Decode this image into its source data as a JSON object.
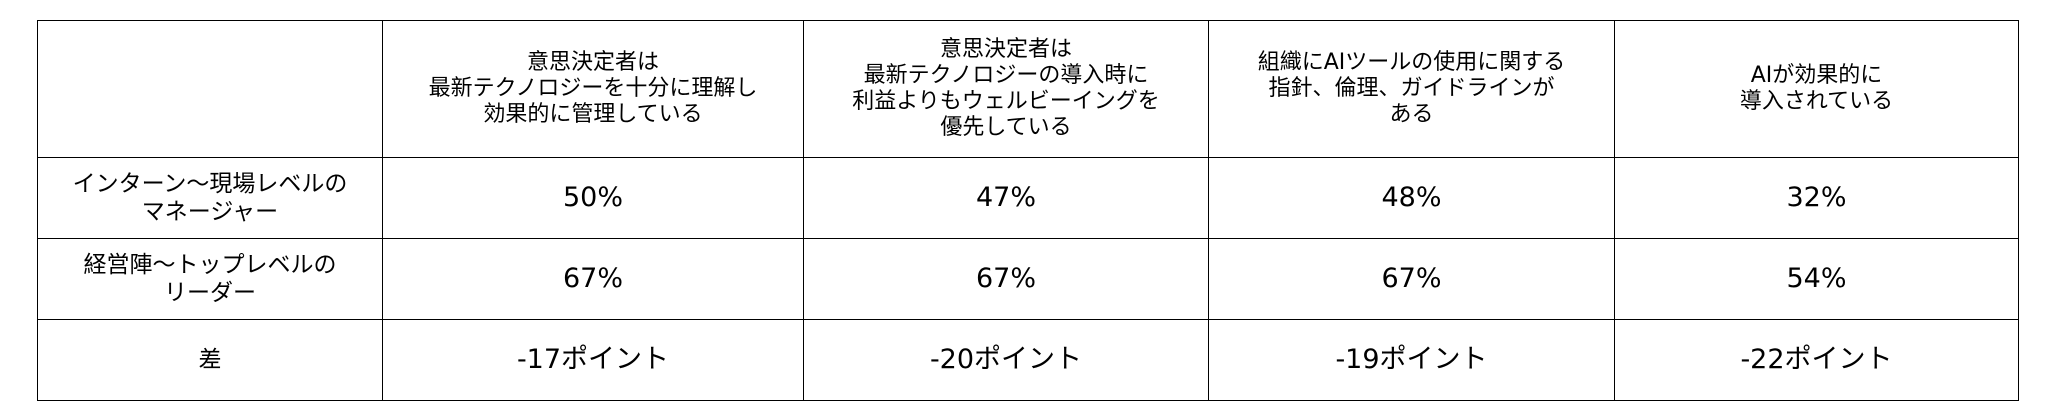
{
  "table": {
    "header": [
      "",
      "意思決定者は\n最新テクノロジーを十分に理解し\n効果的に管理している",
      "意思決定者は\n最新テクノロジーの導入時に\n利益よりもウェルビーイングを\n優先している",
      "組織にAIツールの使用に関する\n指針、倫理、ガイドラインが\nある",
      "AIが効果的に\n導入されている"
    ],
    "rows": [
      [
        "インターン～現場レベルの\nマネージャー",
        "50%",
        "47%",
        "48%",
        "32%"
      ],
      [
        "経営陣～トップレベルの\nリーダー",
        "67%",
        "67%",
        "67%",
        "54%"
      ],
      [
        "差",
        "-17ポイント",
        "-20ポイント",
        "-19ポイント",
        "-22ポイント"
      ]
    ]
  }
}
